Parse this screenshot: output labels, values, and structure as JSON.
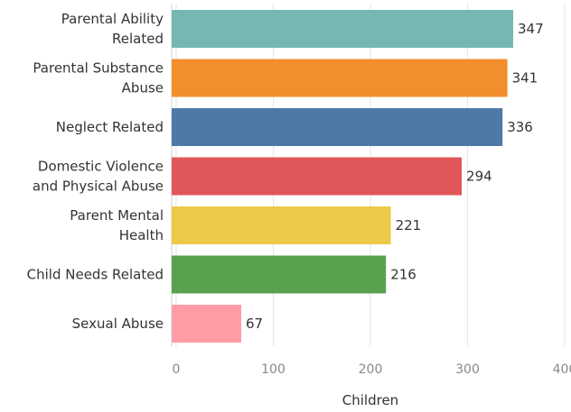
{
  "chart_data": {
    "type": "bar",
    "orientation": "horizontal",
    "categories": [
      [
        "Parental Ability",
        "Related"
      ],
      [
        "Parental Substance",
        "Abuse"
      ],
      [
        "Neglect Related"
      ],
      [
        "Domestic Violence",
        "and Physical Abuse"
      ],
      [
        "Parent Mental",
        "Health"
      ],
      [
        "Child Needs Related"
      ],
      [
        "Sexual Abuse"
      ]
    ],
    "values": [
      347,
      341,
      336,
      294,
      221,
      216,
      67
    ],
    "colors": [
      "#76b7b2",
      "#f28e2b",
      "#4e79a7",
      "#e15759",
      "#edc948",
      "#59a14f",
      "#ff9da7"
    ],
    "xlabel": "Children",
    "xlim": [
      0,
      420
    ],
    "xticks": [
      0,
      100,
      200,
      300,
      400
    ],
    "grid": true,
    "legend": "none"
  }
}
